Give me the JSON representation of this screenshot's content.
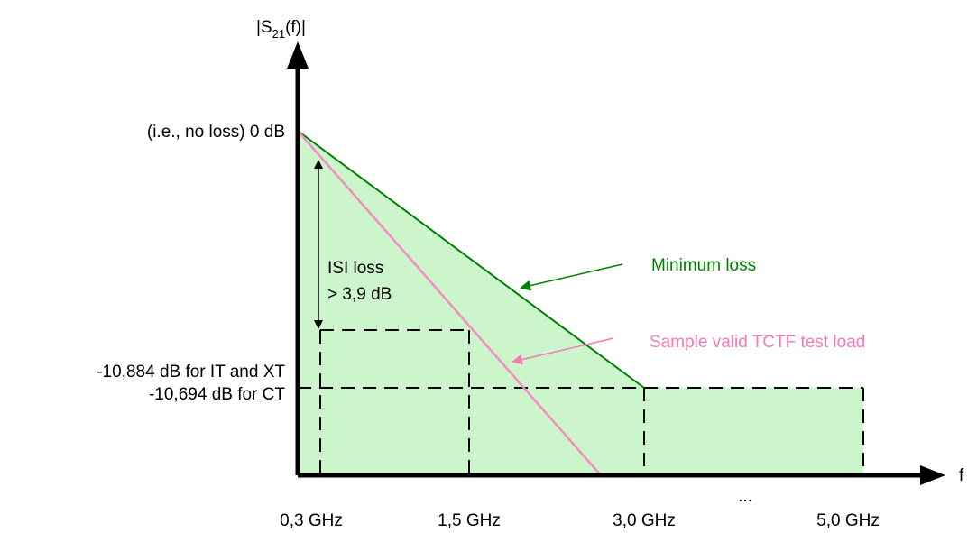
{
  "colors": {
    "fill_region": "#ccf5cc",
    "minimum_loss_line": "#008000",
    "sample_line": "#f48cc0",
    "axis": "#000000"
  },
  "axes": {
    "y_label_main": "|S",
    "y_label_sub": "21",
    "y_label_tail": "(f)|",
    "x_label": "f",
    "ellipsis": "..."
  },
  "y_ticks": {
    "zero": "(i.e., no loss) 0 dB",
    "it_xt": "-10,884 dB for IT and XT",
    "ct": "-10,694 dB for CT"
  },
  "x_ticks": [
    "0,3 GHz",
    "1,5 GHz",
    "3,0 GHz",
    "5,0 GHz"
  ],
  "annotations": {
    "isi_line1": "ISI loss",
    "isi_line2": "> 3,9 dB",
    "minimum_loss": "Minimum loss",
    "sample_load": "Sample valid TCTF test load"
  }
}
